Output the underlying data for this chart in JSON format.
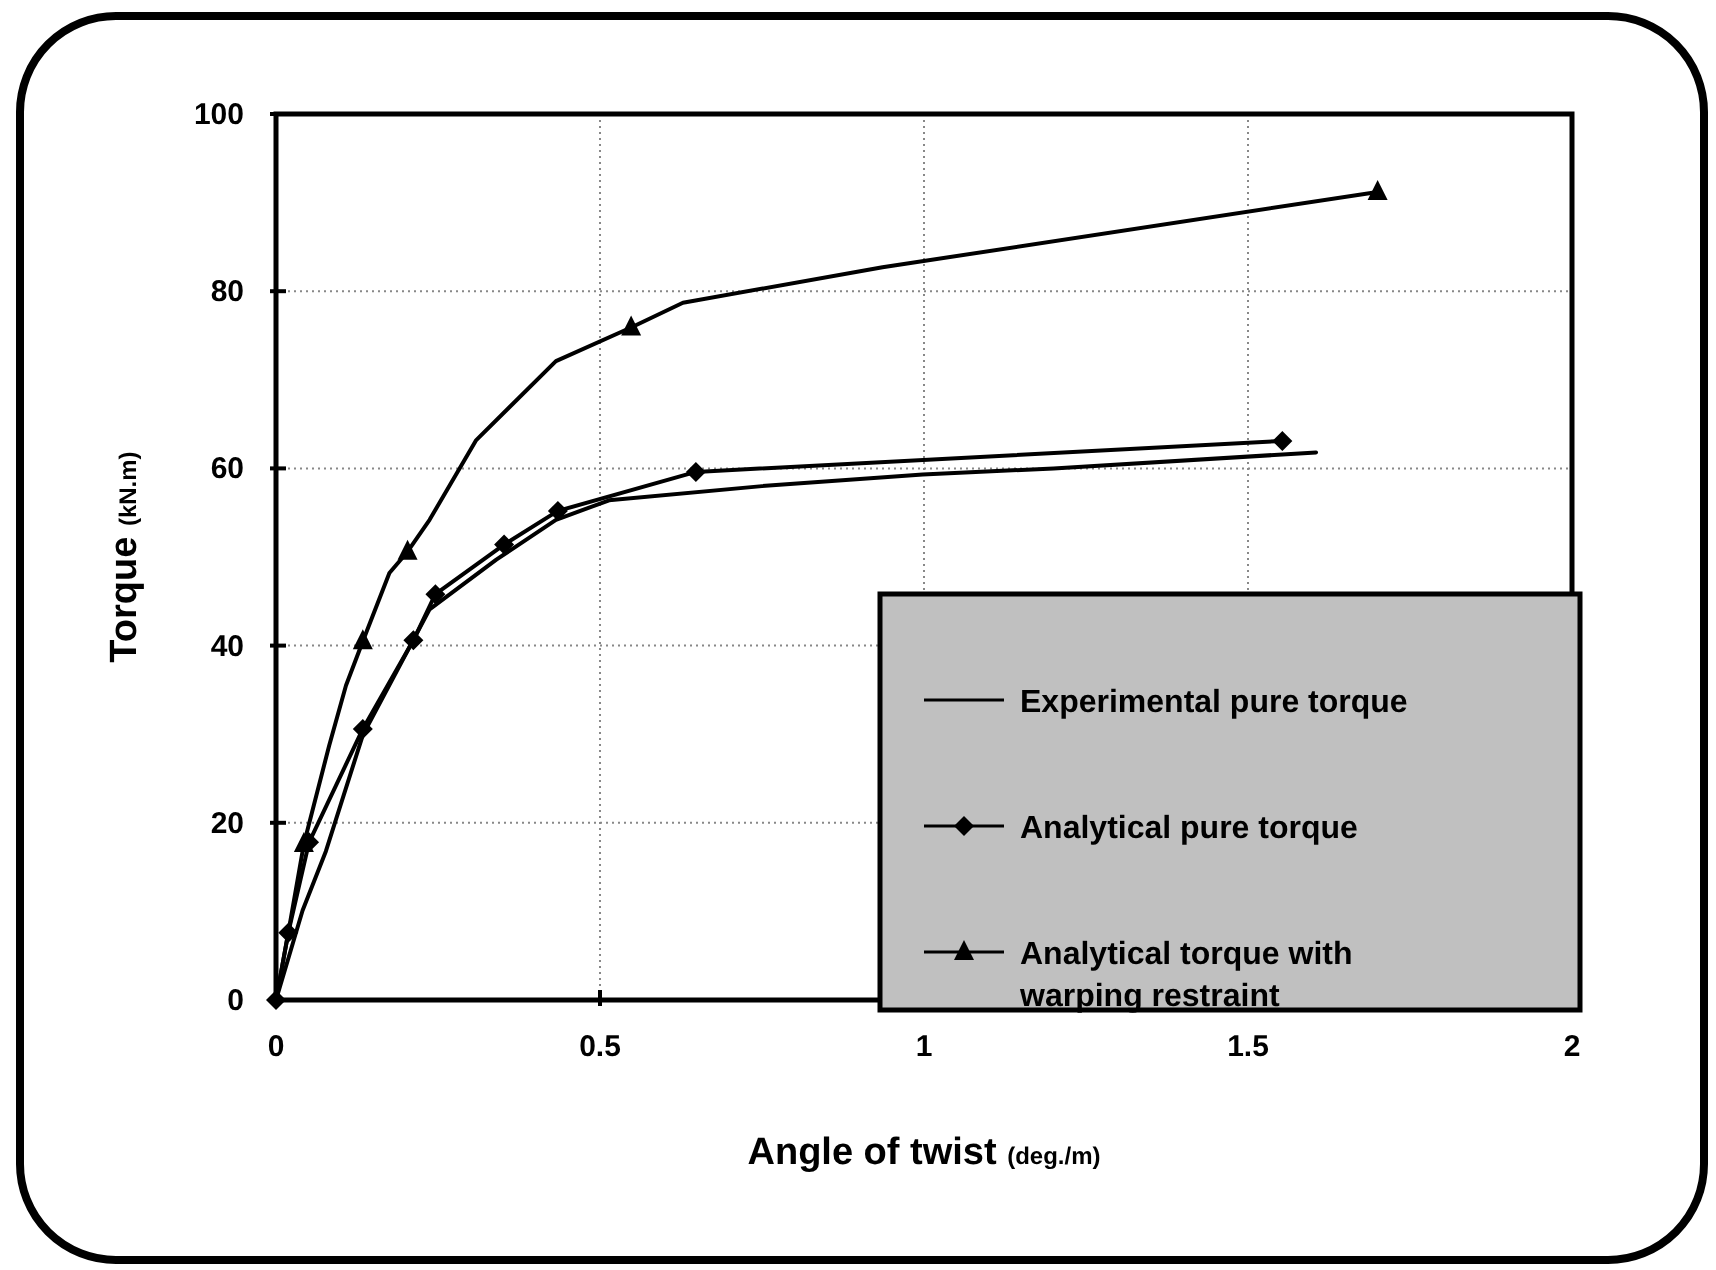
{
  "chart_data": {
    "type": "line",
    "xlabel": "Angle of twist (deg./m)",
    "ylabel": "Torque (kN.m)",
    "xlim": [
      0,
      2
    ],
    "ylim": [
      0,
      100
    ],
    "xticks": [
      0,
      0.5,
      1,
      1.5,
      2
    ],
    "yticks": [
      0,
      20,
      40,
      60,
      80,
      100
    ],
    "grid": true,
    "legend": "bottom right",
    "series": [
      {
        "name": "Experimental pure torque",
        "color": "#000000",
        "marker": "none",
        "x": [
          0,
          0.026,
          0.041,
          0.077,
          0.134,
          0.237,
          0.34,
          0.432,
          0.514,
          0.75,
          0.998,
          1.2,
          1.605
        ],
        "values": [
          0,
          6.4,
          10.1,
          16.8,
          29.9,
          44.1,
          49.7,
          54.2,
          56.4,
          58.0,
          59.3,
          60.0,
          61.8
        ]
      },
      {
        "name": "Analytical pure torque",
        "color": "#000000",
        "marker": "diamond",
        "x": [
          0,
          0.019,
          0.051,
          0.134,
          0.212,
          0.246,
          0.352,
          0.435,
          0.648,
          1.553
        ],
        "values": [
          0,
          7.6,
          17.8,
          30.6,
          40.6,
          45.8,
          51.4,
          55.2,
          59.6,
          63.1
        ]
      },
      {
        "name": "Analytical torque with warping restraint",
        "type": "scatter",
        "color": "#000000",
        "marker": "triangle",
        "x": [
          0.043,
          0.134,
          0.203,
          0.548,
          1.7
        ],
        "values": [
          17.6,
          40.5,
          50.6,
          75.9,
          91.2
        ]
      },
      {
        "type": "line",
        "color": "#000000",
        "marker": "none",
        "x": [
          0,
          0.019,
          0.043,
          0.082,
          0.108,
          0.134,
          0.175,
          0.203,
          0.237,
          0.309,
          0.432,
          0.548,
          0.628,
          0.936,
          1.7
        ],
        "values": [
          0,
          7.6,
          17.6,
          28.7,
          35.5,
          40.5,
          48.2,
          50.6,
          54.2,
          63.2,
          72.1,
          75.9,
          78.7,
          82.7,
          91.2
        ]
      }
    ]
  }
}
